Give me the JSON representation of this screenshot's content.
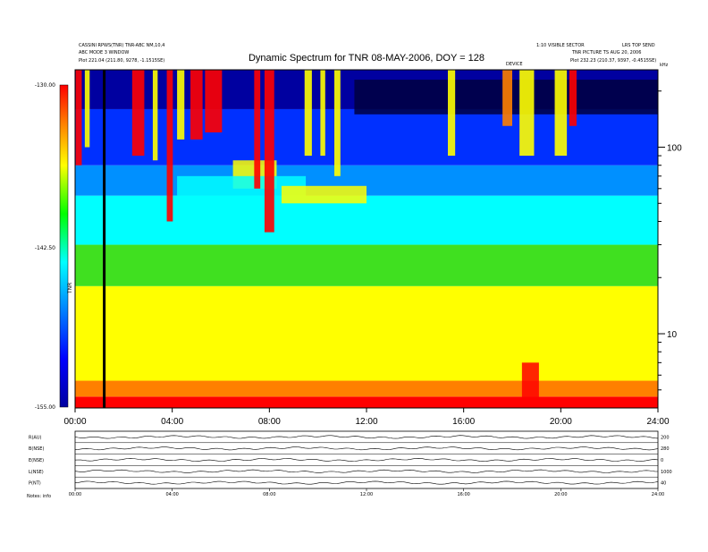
{
  "header": {
    "title": "Dynamic Spectrum for TNR 08-MAY-2006, DOY = 128",
    "top_left_1": "CASSINI RPWS(TNR) TNR-ABC NM,10,4",
    "top_left_2": "ABC MODE 3 WINDOW",
    "top_left_3": "Plot   221.04 (211.80, 9278, -1.1515SE)",
    "top_right_1": "1:10 VISIBLE SECTOR",
    "top_right_2": "LRS TOP SEND",
    "top_right_3": "TNR PICTURE TS AUG 20, 2006",
    "top_right_4": "Plot   232.23 (210.37, 9397, -0.4515SE)",
    "mid_tag": "DEVICE"
  },
  "colors": {
    "dark_navy": "#000040",
    "navy": "#0000a0",
    "blue": "#0030ff",
    "light_blue": "#0090ff",
    "cyan": "#00ffff",
    "green": "#40e020",
    "yellow": "#ffff00",
    "orange": "#ff8000",
    "red": "#ff0000",
    "colorbar_stops": [
      "#0000a0",
      "#0000ff",
      "#0080ff",
      "#00ffff",
      "#00ff00",
      "#ffff00",
      "#ff8000",
      "#ff0000"
    ]
  },
  "colorbar": {
    "top_label": "-130.00",
    "mid_label": "-142.50",
    "bottom_label": "-155.00",
    "unit_label": "TNR"
  },
  "chart_data": [
    {
      "type": "heatmap",
      "title": "Dynamic Spectrum for TNR 08-MAY-2006, DOY = 128",
      "x_axis": {
        "range_hours": [
          0,
          24
        ],
        "tick_labels": [
          "00:00",
          "04:00",
          "08:00",
          "12:00",
          "16:00",
          "20:00",
          "24:00"
        ]
      },
      "y_axis": {
        "scale": "log",
        "unit_label": "kHz",
        "tick_labels": [
          "100",
          "10"
        ],
        "range_khz": [
          4,
          260
        ]
      },
      "colorbar_range": [
        -155.0,
        -130.0
      ],
      "bands": [
        {
          "from_khz": 4,
          "to_khz": 4.6,
          "color": "red"
        },
        {
          "from_khz": 4.6,
          "to_khz": 5.6,
          "color": "orange"
        },
        {
          "from_khz": 5.6,
          "to_khz": 18,
          "color": "yellow"
        },
        {
          "from_khz": 18,
          "to_khz": 30,
          "color": "green"
        },
        {
          "from_khz": 30,
          "to_khz": 55,
          "color": "cyan"
        },
        {
          "from_khz": 55,
          "to_khz": 80,
          "color": "light_blue"
        },
        {
          "from_khz": 80,
          "to_khz": 160,
          "color": "blue"
        },
        {
          "from_khz": 160,
          "to_khz": 260,
          "color": "navy"
        }
      ],
      "bursts": [
        {
          "t": 0.15,
          "w": 0.25,
          "f_low": 80,
          "color": "red"
        },
        {
          "t": 0.5,
          "w": 0.2,
          "f_low": 100,
          "color": "yellow"
        },
        {
          "t": 2.6,
          "w": 0.5,
          "f_low": 90,
          "color": "red"
        },
        {
          "t": 3.3,
          "w": 0.2,
          "f_low": 85,
          "color": "yellow"
        },
        {
          "t": 3.9,
          "w": 0.25,
          "f_low": 40,
          "color": "red"
        },
        {
          "t": 4.35,
          "w": 0.3,
          "f_low": 110,
          "color": "yellow"
        },
        {
          "t": 5.0,
          "w": 0.5,
          "f_low": 110,
          "color": "red"
        },
        {
          "t": 5.7,
          "w": 0.7,
          "f_low": 120,
          "color": "red"
        },
        {
          "t": 7.5,
          "w": 0.25,
          "f_low": 60,
          "color": "red"
        },
        {
          "t": 8.0,
          "w": 0.4,
          "f_low": 35,
          "color": "red"
        },
        {
          "t": 9.6,
          "w": 0.3,
          "f_low": 90,
          "color": "yellow"
        },
        {
          "t": 10.2,
          "w": 0.2,
          "f_low": 90,
          "color": "yellow"
        },
        {
          "t": 10.8,
          "w": 0.25,
          "f_low": 70,
          "color": "yellow"
        },
        {
          "t": 15.5,
          "w": 0.3,
          "f_low": 90,
          "color": "yellow"
        },
        {
          "t": 17.8,
          "w": 0.4,
          "f_low": 130,
          "color": "orange"
        },
        {
          "t": 18.6,
          "w": 0.6,
          "f_low": 90,
          "color": "yellow"
        },
        {
          "t": 20.0,
          "w": 0.5,
          "f_low": 90,
          "color": "yellow"
        },
        {
          "t": 20.5,
          "w": 0.3,
          "f_low": 130,
          "color": "red"
        }
      ],
      "patches": [
        {
          "t0": 6.5,
          "t1": 8.3,
          "f0": 60,
          "f1": 85,
          "color": "yellow"
        },
        {
          "t0": 4.2,
          "t1": 9.5,
          "f0": 45,
          "f1": 70,
          "color": "cyan"
        },
        {
          "t0": 8.5,
          "t1": 12.0,
          "f0": 50,
          "f1": 62,
          "color": "yellow"
        },
        {
          "t0": 11.5,
          "t1": 24.0,
          "f0": 150,
          "f1": 230,
          "color": "dark_navy"
        },
        {
          "t0": 18.4,
          "t1": 19.1,
          "f0": 4.2,
          "f1": 7,
          "color": "red"
        }
      ],
      "data_gap": {
        "t": 1.2
      }
    },
    {
      "type": "line",
      "panel": "house-keeping",
      "x_axis": {
        "range_hours": [
          0,
          24
        ],
        "tick_labels": [
          "00:00",
          "04:00",
          "08:00",
          "12:00",
          "16:00",
          "20:00",
          "24:00"
        ]
      },
      "series": [
        {
          "name": "R(AU)",
          "right_label": "200"
        },
        {
          "name": "B(NSE)",
          "right_label": "280"
        },
        {
          "name": "E(NSE)",
          "right_label": "0"
        },
        {
          "name": "L(NSE)",
          "right_label": "1000"
        },
        {
          "name": "P(NT)",
          "right_label": "40"
        }
      ],
      "footer_label": "Notes:  info"
    }
  ]
}
